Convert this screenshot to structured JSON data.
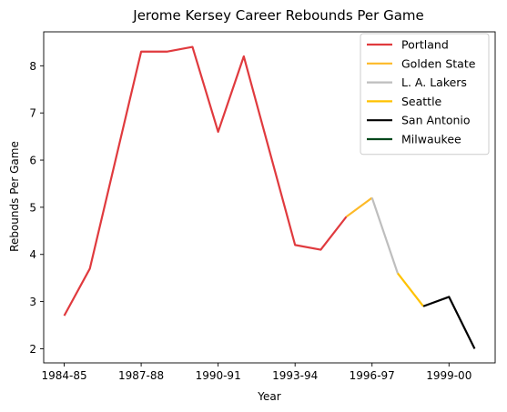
{
  "chart_data": {
    "type": "line",
    "title": "Jerome Kersey Career Rebounds Per Game",
    "xlabel": "Year",
    "ylabel": "Rebounds Per Game",
    "x": [
      "1984-85",
      "1985-86",
      "1986-87",
      "1987-88",
      "1988-89",
      "1989-90",
      "1990-91",
      "1991-92",
      "1992-93",
      "1993-94",
      "1994-95",
      "1995-96",
      "1996-97",
      "1997-98",
      "1998-99",
      "1999-00",
      "2000-01"
    ],
    "x_ticks": [
      "1984-85",
      "1987-88",
      "1990-91",
      "1993-94",
      "1996-97",
      "1999-00"
    ],
    "y_ticks": [
      2,
      3,
      4,
      5,
      6,
      7,
      8
    ],
    "xlim": [
      -0.8,
      16.8
    ],
    "ylim": [
      1.7,
      8.72
    ],
    "grid": false,
    "legend_position": "top-right",
    "series": [
      {
        "name": "Portland",
        "color": "#e03a3e",
        "points": [
          [
            "1984-85",
            2.7
          ],
          [
            "1985-86",
            3.7
          ],
          [
            "1986-87",
            6.0
          ],
          [
            "1987-88",
            8.3
          ],
          [
            "1988-89",
            8.3
          ],
          [
            "1989-90",
            8.4
          ],
          [
            "1990-91",
            6.6
          ],
          [
            "1991-92",
            8.2
          ],
          [
            "1992-93",
            6.2
          ],
          [
            "1993-94",
            4.2
          ],
          [
            "1994-95",
            4.1
          ],
          [
            "1995-96",
            4.8
          ]
        ]
      },
      {
        "name": "Golden State",
        "color": "#fdb927",
        "points": [
          [
            "1995-96",
            4.8
          ],
          [
            "1996-97",
            5.2
          ]
        ]
      },
      {
        "name": "L. A. Lakers",
        "color": "#bebebe",
        "points": [
          [
            "1996-97",
            5.2
          ],
          [
            "1997-98",
            3.6
          ]
        ]
      },
      {
        "name": "Seattle",
        "color": "#ffc200",
        "points": [
          [
            "1997-98",
            3.6
          ],
          [
            "1998-99",
            2.9
          ]
        ]
      },
      {
        "name": "San Antonio",
        "color": "#000000",
        "points": [
          [
            "1998-99",
            2.9
          ],
          [
            "1999-00",
            3.1
          ],
          [
            "2000-01",
            2.0
          ]
        ]
      },
      {
        "name": "Milwaukee",
        "color": "#00471b",
        "points": []
      }
    ]
  }
}
